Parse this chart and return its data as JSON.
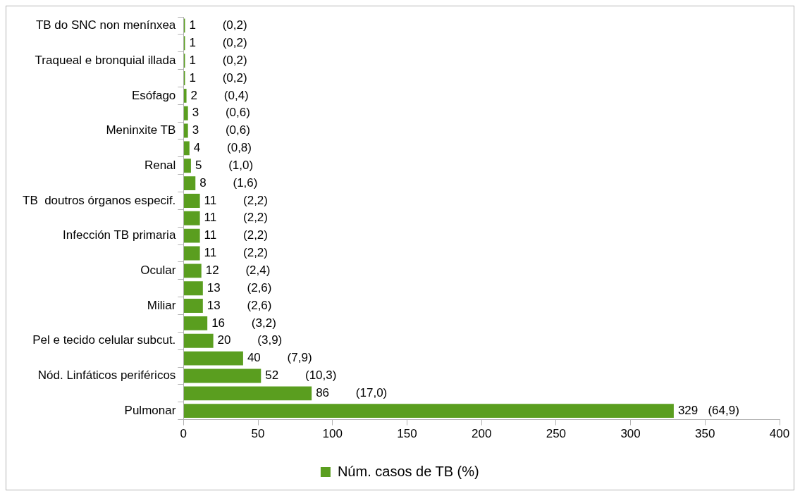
{
  "chart_data": {
    "type": "bar",
    "orientation": "horizontal",
    "categories": [
      "TB do SNC non menínxea",
      null,
      "Traqueal e bronquial illada",
      null,
      "Esófago",
      null,
      "Meninxite TB",
      null,
      "Renal",
      null,
      "TB  doutros órganos especif.",
      null,
      "Infección TB primaria",
      null,
      "Ocular",
      null,
      "Miliar",
      null,
      "Pel e tecido celular subcut.",
      null,
      "Nód. Linfáticos periféricos",
      null,
      "Pulmonar"
    ],
    "series": [
      {
        "name": "Núm. casos de TB (%)",
        "color": "#5a9e1f",
        "values": [
          1,
          1,
          1,
          1,
          2,
          3,
          3,
          4,
          5,
          8,
          11,
          11,
          11,
          11,
          12,
          13,
          13,
          16,
          20,
          40,
          52,
          86,
          329
        ],
        "value_labels": [
          "1        (0,2)",
          "1        (0,2)",
          "1        (0,2)",
          "1        (0,2)",
          "2        (0,4)",
          "3        (0,6)",
          "3        (0,6)",
          "4        (0,8)",
          "5        (1,0)",
          "8        (1,6)",
          "11        (2,2)",
          "11        (2,2)",
          "11        (2,2)",
          "11        (2,2)",
          "12        (2,4)",
          "13        (2,6)",
          "13        (2,6)",
          "16        (3,2)",
          "20        (3,9)",
          "40        (7,9)",
          "52        (10,3)",
          "86        (17,0)",
          "329   (64,9)"
        ]
      }
    ],
    "xlim": [
      0,
      400
    ],
    "xticks": [
      0,
      50,
      100,
      150,
      200,
      250,
      300,
      350,
      400
    ],
    "grid": false,
    "legend": "bottom"
  }
}
